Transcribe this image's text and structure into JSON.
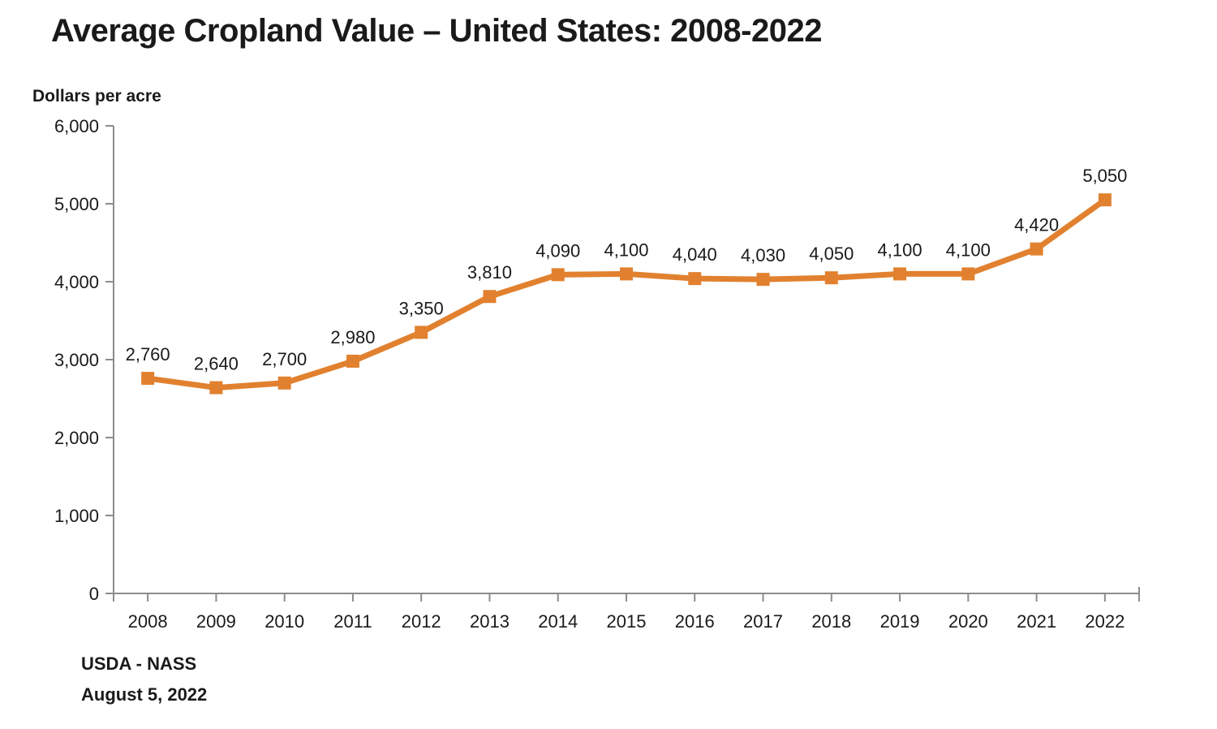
{
  "page": {
    "title": "Average Cropland Value – United States: 2008-2022",
    "y_axis_unit_label": "Dollars per acre",
    "source_line1": "USDA - NASS",
    "source_line2": "August 5, 2022"
  },
  "colors": {
    "line": "#E1812F",
    "marker": "#E1812F",
    "axis": "#8C8C8C",
    "text": "#1A1A1A",
    "background": "#FFFFFF"
  },
  "chart_data": {
    "type": "line",
    "title": "Average Cropland Value – United States: 2008-2022",
    "xlabel": "",
    "ylabel": "Dollars per acre",
    "categories": [
      "2008",
      "2009",
      "2010",
      "2011",
      "2012",
      "2013",
      "2014",
      "2015",
      "2016",
      "2017",
      "2018",
      "2019",
      "2020",
      "2021",
      "2022"
    ],
    "values": [
      2760,
      2640,
      2700,
      2980,
      3350,
      3810,
      4090,
      4100,
      4040,
      4030,
      4050,
      4100,
      4100,
      4420,
      5050
    ],
    "data_labels": [
      "2,760",
      "2,640",
      "2,700",
      "2,980",
      "3,350",
      "3,810",
      "4,090",
      "4,100",
      "4,040",
      "4,030",
      "4,050",
      "4,100",
      "4,100",
      "4,420",
      "5,050"
    ],
    "ylim": [
      0,
      6000
    ],
    "y_tick_values": [
      0,
      1000,
      2000,
      3000,
      4000,
      5000,
      6000
    ],
    "y_tick_labels": [
      "0",
      "1,000",
      "2,000",
      "3,000",
      "4,000",
      "5,000",
      "6,000"
    ],
    "grid": false,
    "legend": "none",
    "marker": "square",
    "line_color": "#E1812F",
    "source": "USDA - NASS, August 5, 2022"
  }
}
